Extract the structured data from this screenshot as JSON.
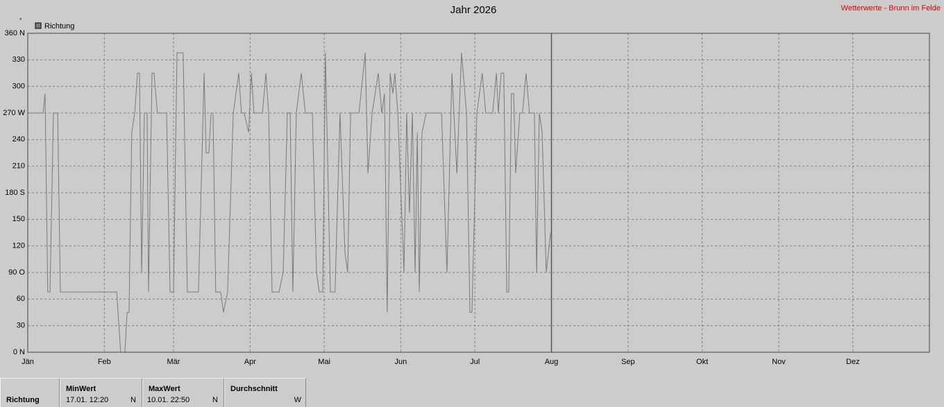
{
  "chart_data": {
    "type": "line",
    "title": "Jahr 2026",
    "source": "Wetterwerte - Brunn im Felde",
    "y_unit": "°",
    "x": [
      0,
      6.2,
      7,
      8.1,
      9,
      10.4,
      12.1,
      13.2,
      36,
      37.6,
      39.3,
      40.2,
      41,
      42.1,
      43.3,
      44.4,
      45.2,
      46.1,
      47.2,
      48.3,
      48.9,
      50.3,
      51.1,
      52.5,
      56.2,
      57.6,
      59,
      60.4,
      62.9,
      64.6,
      69.1,
      71.4,
      72.2,
      73.3,
      74.2,
      75,
      76.1,
      78.1,
      79.2,
      80.9,
      83.2,
      85.4,
      86.5,
      87.6,
      89.4,
      90.5,
      91.6,
      95,
      96.4,
      97.5,
      98.9,
      101.7,
      103.4,
      105.1,
      106.2,
      107.3,
      108.7,
      110.7,
      112.4,
      115.2,
      116.9,
      118,
      119.4,
      120.5,
      122.5,
      124.4,
      126.4,
      128.4,
      129.5,
      130.7,
      134.1,
      136.6,
      137.7,
      139.4,
      141.9,
      143.3,
      144.4,
      145.5,
      146.7,
      147.8,
      148.6,
      149.8,
      152.3,
      153.4,
      154.5,
      155.7,
      156.8,
      157.7,
      158.5,
      159.6,
      161.3,
      167.5,
      169.7,
      171.7,
      173.7,
      175.6,
      177.6,
      179,
      179.8,
      181.8,
      184,
      185.4,
      188.2,
      189.7,
      190.5,
      191.6,
      192.7,
      193.9,
      194.7,
      195.8,
      196.7,
      197.5,
      199.2,
      200.3,
      201.7,
      203.1,
      205.1,
      206,
      207.1,
      208.2,
      209.9,
      211.6
    ],
    "series": [
      {
        "name": "Richtung",
        "color": "#7a7a7a",
        "values": [
          270,
          270,
          292,
          68,
          68,
          270,
          270,
          68,
          68,
          0,
          0,
          45,
          45,
          248,
          270,
          315,
          315,
          90,
          270,
          270,
          68,
          315,
          315,
          270,
          270,
          68,
          68,
          338,
          338,
          68,
          68,
          315,
          225,
          225,
          270,
          270,
          68,
          68,
          45,
          68,
          270,
          315,
          270,
          270,
          248,
          315,
          270,
          270,
          315,
          270,
          68,
          68,
          90,
          270,
          270,
          68,
          270,
          315,
          270,
          270,
          90,
          68,
          68,
          338,
          68,
          68,
          270,
          112,
          90,
          270,
          270,
          338,
          202,
          270,
          315,
          270,
          292,
          45,
          315,
          292,
          315,
          270,
          90,
          270,
          157,
          270,
          90,
          248,
          68,
          248,
          270,
          270,
          90,
          315,
          202,
          338,
          270,
          45,
          45,
          270,
          315,
          270,
          270,
          315,
          270,
          315,
          315,
          68,
          68,
          292,
          292,
          202,
          270,
          270,
          315,
          270,
          270,
          90,
          270,
          248,
          90,
          135
        ]
      }
    ],
    "xlim": [
      0,
      365
    ],
    "xticks": [
      {
        "value": 0,
        "label": "Jän"
      },
      {
        "value": 31,
        "label": "Feb"
      },
      {
        "value": 59,
        "label": "Mär"
      },
      {
        "value": 90,
        "label": "Apr"
      },
      {
        "value": 120,
        "label": "Mai"
      },
      {
        "value": 151,
        "label": "Jun"
      },
      {
        "value": 181,
        "label": "Jul"
      },
      {
        "value": 212,
        "label": "Aug"
      },
      {
        "value": 243,
        "label": "Sep"
      },
      {
        "value": 273,
        "label": "Okt"
      },
      {
        "value": 304,
        "label": "Nov"
      },
      {
        "value": 334,
        "label": "Dez"
      }
    ],
    "ylim": [
      0,
      360
    ],
    "yticks": [
      {
        "value": 0,
        "label": "0 N"
      },
      30,
      60,
      {
        "value": 90,
        "label": "90 O"
      },
      120,
      150,
      {
        "value": 180,
        "label": "180 S"
      },
      210,
      240,
      {
        "value": 270,
        "label": "270 W"
      },
      300,
      330,
      {
        "value": 360,
        "label": "360 N"
      }
    ],
    "grid": true
  },
  "table": {
    "row_label": "Richtung",
    "columns": [
      {
        "header": "MinWert",
        "time": "17.01.  12:20",
        "dir": "N"
      },
      {
        "header": "MaxWert",
        "time": "10.01.  22:50",
        "dir": "N"
      },
      {
        "header": "Durchschnitt",
        "dir": "W"
      }
    ]
  }
}
